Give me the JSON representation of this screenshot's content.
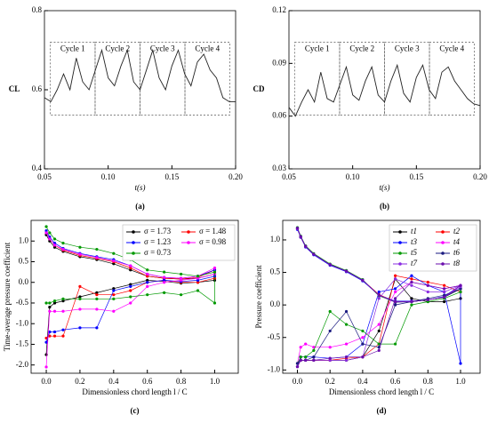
{
  "chart_data": [
    {
      "type": "line",
      "panel_label": "(a)",
      "xlabel": "t(s)",
      "ylabel": "CL",
      "xlim": [
        0.05,
        0.2
      ],
      "ylim": [
        0.4,
        0.8
      ],
      "xticks": [
        0.05,
        {
          "value": 0.1,
          "label": "0.10"
        },
        0.15,
        {
          "value": 0.2,
          "label": "0.20"
        }
      ],
      "yticks": [
        0.4,
        0.6,
        0.8
      ],
      "annotations": [
        "Cycle 1",
        "Cycle 2",
        "Cycle 3",
        "Cycle 4"
      ],
      "x": [
        0.05,
        0.055,
        0.06,
        0.065,
        0.07,
        0.075,
        0.08,
        0.085,
        0.09,
        0.095,
        0.1,
        0.105,
        0.11,
        0.115,
        0.12,
        0.125,
        0.13,
        0.135,
        0.14,
        0.145,
        0.15,
        0.155,
        0.16,
        0.165,
        0.17,
        0.175,
        0.18,
        0.185,
        0.19,
        0.195,
        0.2
      ],
      "series": [
        {
          "color": "#222222",
          "values": [
            0.58,
            0.57,
            0.6,
            0.64,
            0.6,
            0.68,
            0.62,
            0.6,
            0.65,
            0.7,
            0.63,
            0.61,
            0.66,
            0.7,
            0.62,
            0.6,
            0.65,
            0.7,
            0.63,
            0.6,
            0.66,
            0.7,
            0.64,
            0.61,
            0.67,
            0.69,
            0.65,
            0.63,
            0.58,
            0.57,
            0.57
          ]
        }
      ]
    },
    {
      "type": "line",
      "panel_label": "(b)",
      "xlabel": "t(s)",
      "ylabel": "CD",
      "xlim": [
        0.05,
        0.2
      ],
      "ylim": [
        0.03,
        0.12
      ],
      "xticks": [
        0.05,
        {
          "value": 0.1,
          "label": "0.10"
        },
        0.15,
        {
          "value": 0.2,
          "label": "0.20"
        }
      ],
      "yticks": [
        0.03,
        0.06,
        0.09,
        0.12
      ],
      "annotations": [
        "Cycle 1",
        "Cycle 2",
        "Cycle 3",
        "Cycle 4"
      ],
      "x": [
        0.05,
        0.055,
        0.06,
        0.065,
        0.07,
        0.075,
        0.08,
        0.085,
        0.09,
        0.095,
        0.1,
        0.105,
        0.11,
        0.115,
        0.12,
        0.125,
        0.13,
        0.135,
        0.14,
        0.145,
        0.15,
        0.155,
        0.16,
        0.165,
        0.17,
        0.175,
        0.18,
        0.185,
        0.19,
        0.195,
        0.2
      ],
      "series": [
        {
          "color": "#222222",
          "values": [
            0.065,
            0.06,
            0.068,
            0.075,
            0.068,
            0.085,
            0.07,
            0.068,
            0.078,
            0.088,
            0.072,
            0.069,
            0.08,
            0.088,
            0.072,
            0.068,
            0.08,
            0.089,
            0.073,
            0.068,
            0.082,
            0.089,
            0.075,
            0.07,
            0.085,
            0.088,
            0.08,
            0.075,
            0.07,
            0.067,
            0.066
          ]
        }
      ]
    },
    {
      "type": "line",
      "panel_label": "(c)",
      "xlabel": "Dimensionless chord length l / C",
      "ylabel": "Time-average pressure coefficient",
      "xlim": [
        -0.09,
        1.14
      ],
      "ylim": [
        -2.2,
        1.5
      ],
      "markers": true,
      "legend": "upper right",
      "xticks": [
        {
          "value": 0,
          "label": "0.0"
        },
        0.2,
        0.4,
        0.6,
        0.8,
        {
          "value": 1,
          "label": "1.0"
        }
      ],
      "yticks": [
        {
          "value": 1,
          "label": "1.0"
        },
        0.5,
        {
          "value": 0,
          "label": "0.0"
        },
        -0.5,
        {
          "value": -1,
          "label": "-1.0"
        },
        -1.5,
        {
          "value": -2,
          "label": "-2.0"
        }
      ],
      "x": [
        0,
        0.02,
        0.05,
        0.1,
        0.2,
        0.3,
        0.4,
        0.5,
        0.6,
        0.7,
        0.8,
        0.9,
        1,
        1,
        0.9,
        0.8,
        0.7,
        0.6,
        0.5,
        0.4,
        0.3,
        0.2,
        0.1,
        0.05,
        0.02,
        0
      ],
      "series": [
        {
          "name": "σ = 1.73",
          "color": "#000000",
          "values": [
            1.15,
            1.0,
            0.85,
            0.75,
            0.62,
            0.55,
            0.45,
            0.3,
            0.15,
            0.1,
            0.08,
            0.1,
            0.2,
            0.05,
            0,
            -0.02,
            0.02,
            0.05,
            -0.05,
            -0.15,
            -0.25,
            -0.35,
            -0.45,
            -0.5,
            -0.6,
            -1.75
          ]
        },
        {
          "name": "σ = 1.48",
          "color": "#ff0000",
          "values": [
            1.2,
            1.05,
            0.9,
            0.78,
            0.65,
            0.58,
            0.5,
            0.35,
            0.15,
            0.1,
            0.08,
            0.12,
            0.3,
            0.1,
            0,
            0,
            0.05,
            0,
            -0.2,
            -0.3,
            -0.3,
            -0.1,
            -1.3,
            -1.3,
            -1.3,
            -1.35
          ]
        },
        {
          "name": "σ = 1.23",
          "color": "#0000ff",
          "values": [
            1.25,
            1.1,
            0.95,
            0.82,
            0.7,
            0.62,
            0.55,
            0.4,
            0.2,
            0.12,
            0.1,
            0.15,
            0.3,
            0.15,
            0.05,
            0.02,
            0.05,
            0,
            -0.1,
            -0.2,
            -1.1,
            -1.1,
            -1.15,
            -1.2,
            -1.2,
            -1.45
          ]
        },
        {
          "name": "σ = 0.98",
          "color": "#ff00ff",
          "values": [
            1.2,
            1.05,
            0.9,
            0.8,
            0.68,
            0.6,
            0.52,
            0.4,
            0.2,
            0.12,
            0.1,
            0.15,
            0.35,
            0.2,
            0.1,
            0.05,
            0,
            -0.1,
            -0.5,
            -0.7,
            -0.65,
            -0.65,
            -0.7,
            -0.7,
            -0.7,
            -2.05
          ]
        },
        {
          "name": "σ = 0.73",
          "color": "#009900",
          "values": [
            1.35,
            1.2,
            1.05,
            0.95,
            0.85,
            0.8,
            0.7,
            0.55,
            0.3,
            0.25,
            0.2,
            0.15,
            0.25,
            -0.5,
            -0.2,
            -0.3,
            -0.25,
            -0.3,
            -0.35,
            -0.4,
            -0.4,
            -0.4,
            -0.4,
            -0.45,
            -0.5,
            -0.5
          ]
        }
      ]
    },
    {
      "type": "line",
      "panel_label": "(d)",
      "xlabel": "Dimensionless chord length l / C",
      "ylabel": "Pressure coefficient",
      "xlim": [
        -0.09,
        1.12
      ],
      "ylim": [
        -1.05,
        1.3
      ],
      "markers": true,
      "legend": "upper right",
      "xticks": [
        {
          "value": 0,
          "label": "0.0"
        },
        0.2,
        0.4,
        0.6,
        0.8,
        {
          "value": 1,
          "label": "1.0"
        }
      ],
      "yticks": [
        {
          "value": -1,
          "label": "-1.0"
        },
        -0.5,
        {
          "value": 0,
          "label": "0.0"
        },
        0.5,
        {
          "value": 1,
          "label": "1.0"
        }
      ],
      "x": [
        0,
        0.02,
        0.05,
        0.1,
        0.2,
        0.3,
        0.4,
        0.5,
        0.6,
        0.7,
        0.8,
        0.9,
        1,
        1,
        0.9,
        0.8,
        0.7,
        0.6,
        0.5,
        0.4,
        0.3,
        0.2,
        0.1,
        0.05,
        0.02,
        0
      ],
      "series": [
        {
          "name": "t1",
          "color": "#000000",
          "values": [
            1.18,
            1.05,
            0.9,
            0.78,
            0.62,
            0.52,
            0.38,
            0.15,
            0.05,
            0.05,
            0.08,
            0.12,
            0.25,
            0.1,
            0.05,
            0.05,
            0.1,
            0.4,
            -0.4,
            -0.8,
            -0.85,
            -0.85,
            -0.85,
            -0.85,
            -0.85,
            -0.9
          ]
        },
        {
          "name": "t2",
          "color": "#ff0000",
          "values": [
            1.17,
            1.04,
            0.9,
            0.78,
            0.62,
            0.52,
            0.38,
            0.16,
            0.05,
            0.06,
            0.08,
            0.12,
            0.25,
            0.2,
            0.3,
            0.35,
            0.4,
            0.45,
            -0.6,
            -0.8,
            -0.82,
            -0.85,
            -0.85,
            -0.85,
            -0.85,
            -0.95
          ]
        },
        {
          "name": "t3",
          "color": "#0000ff",
          "values": [
            1.16,
            1.04,
            0.89,
            0.77,
            0.61,
            0.51,
            0.37,
            0.15,
            0.06,
            0.06,
            0.08,
            0.13,
            0.3,
            -0.9,
            0.2,
            0.3,
            0.45,
            0.25,
            0.2,
            -0.6,
            -0.8,
            -0.82,
            -0.8,
            -0.8,
            -0.8,
            -0.95
          ]
        },
        {
          "name": "t4",
          "color": "#ff00ff",
          "values": [
            1.18,
            1.05,
            0.9,
            0.78,
            0.62,
            0.52,
            0.38,
            0.15,
            0.05,
            0.05,
            0.08,
            0.12,
            0.3,
            0.3,
            0.25,
            0.3,
            0.35,
            0.2,
            -0.3,
            -0.5,
            -0.6,
            -0.65,
            -0.65,
            -0.6,
            -0.65,
            -0.9
          ]
        },
        {
          "name": "t5",
          "color": "#009900",
          "values": [
            1.19,
            1.06,
            0.91,
            0.79,
            0.63,
            0.53,
            0.39,
            0.14,
            0.05,
            0.05,
            0.08,
            0.12,
            0.25,
            0.2,
            0.1,
            0.05,
            0,
            -0.6,
            -0.6,
            -0.4,
            -0.3,
            -0.1,
            -0.7,
            -0.8,
            -0.8,
            -0.9
          ]
        },
        {
          "name": "t6",
          "color": "#1a1a80",
          "values": [
            1.18,
            1.05,
            0.9,
            0.78,
            0.62,
            0.52,
            0.38,
            0.15,
            0.04,
            0.05,
            0.08,
            0.12,
            0.25,
            0.25,
            0.15,
            0.1,
            0.05,
            0,
            -0.65,
            -0.6,
            -0.1,
            -0.4,
            -0.8,
            -0.85,
            -0.85,
            -0.9
          ]
        },
        {
          "name": "t7",
          "color": "#8a2be2",
          "values": [
            1.17,
            1.05,
            0.9,
            0.78,
            0.62,
            0.52,
            0.38,
            0.15,
            0.05,
            0.05,
            0.08,
            0.12,
            0.28,
            0.3,
            0.2,
            0.2,
            0.3,
            0.4,
            0.1,
            -0.8,
            -0.85,
            -0.85,
            -0.85,
            -0.85,
            -0.85,
            -0.95
          ]
        },
        {
          "name": "t8",
          "color": "#6a0dad",
          "values": [
            1.18,
            1.05,
            0.9,
            0.78,
            0.62,
            0.52,
            0.38,
            0.15,
            0.05,
            0.05,
            0.08,
            0.12,
            0.3,
            0.3,
            0.25,
            0.3,
            0.35,
            0.1,
            -0.7,
            -0.8,
            -0.8,
            -0.82,
            -0.85,
            -0.85,
            -0.85,
            -0.95
          ]
        }
      ]
    }
  ]
}
